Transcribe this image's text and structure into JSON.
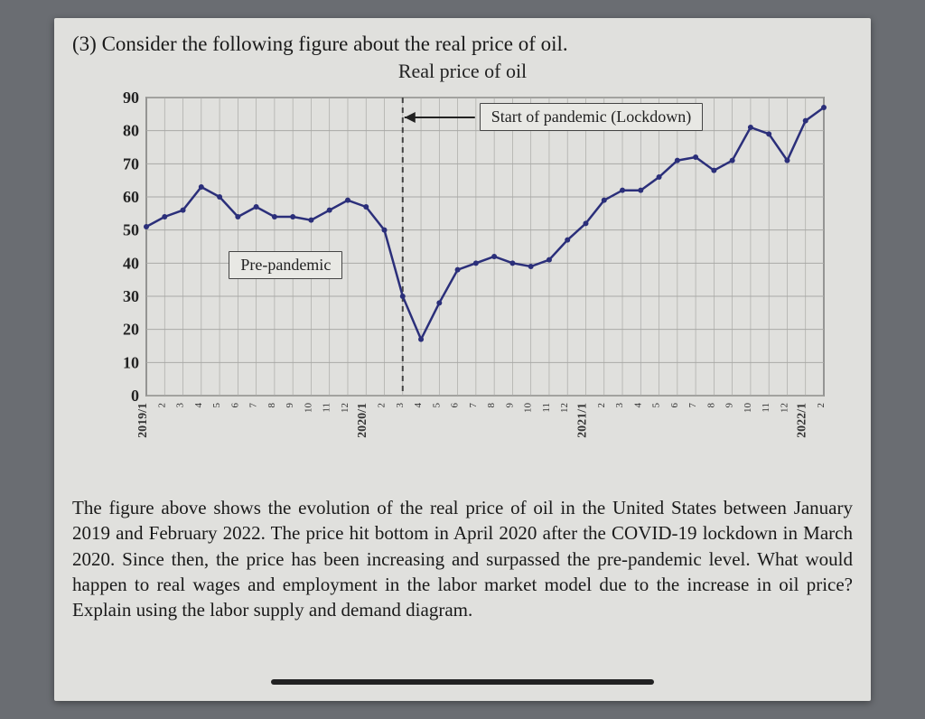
{
  "question_label": "(3) Consider the following figure about the real price of oil.",
  "chart": {
    "type": "line",
    "title": "Real price of oil",
    "line_color": "#2b2f7a",
    "marker_color": "#2b2f7a",
    "marker_radius": 3,
    "line_width": 2.5,
    "background_color": "#e0e0dd",
    "grid_color": "#a9a9a6",
    "ylim": [
      0,
      90
    ],
    "ytick_step": 10,
    "y_ticks": [
      0,
      10,
      20,
      30,
      40,
      50,
      60,
      70,
      80,
      90
    ],
    "x_labels": [
      "2019/1",
      "2",
      "3",
      "4",
      "5",
      "6",
      "7",
      "8",
      "9",
      "10",
      "11",
      "12",
      "2020/1",
      "2",
      "3",
      "4",
      "5",
      "6",
      "7",
      "8",
      "9",
      "10",
      "11",
      "12",
      "2021/1",
      "2",
      "3",
      "4",
      "5",
      "6",
      "7",
      "8",
      "9",
      "10",
      "11",
      "12",
      "2022/1",
      "2"
    ],
    "values": [
      51,
      54,
      56,
      63,
      60,
      54,
      57,
      54,
      54,
      53,
      56,
      59,
      57,
      50,
      30,
      17,
      28,
      38,
      40,
      42,
      40,
      39,
      41,
      47,
      52,
      59,
      62,
      62,
      66,
      71,
      72,
      68,
      71,
      81,
      79,
      71,
      83,
      87
    ],
    "pandemic_line_index": 14,
    "annotations": {
      "pre_pandemic": "Pre-pandemic",
      "start_pandemic": "Start of pandemic (Lockdown)"
    }
  },
  "body_text": "The figure above shows the evolution of the real price of oil in the United States between January 2019 and February 2022. The price hit bottom in April 2020 after the COVID-19 lockdown in March 2020. Since then, the price has been increasing and surpassed the pre-pandemic level. What would happen to real wages and employment in the labor market model due to the increase in oil price? Explain using the labor supply and demand diagram."
}
